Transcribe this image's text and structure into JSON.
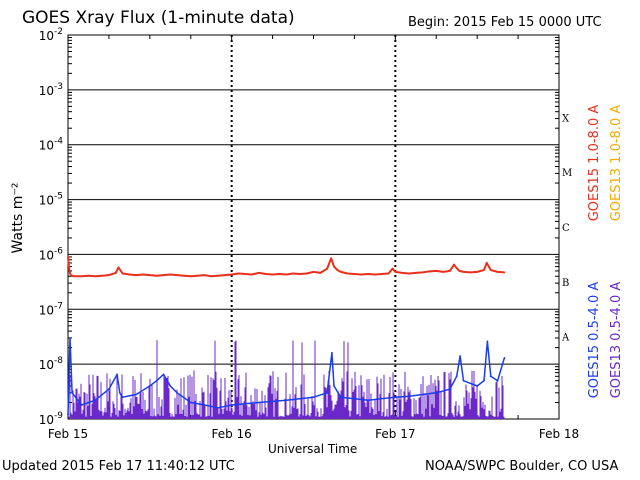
{
  "header": {
    "title": "GOES Xray Flux (1-minute data)",
    "begin": "Begin:  2015 Feb 15 0000 UTC"
  },
  "footer": {
    "updated": "Updated 2015 Feb 17 11:40:12 UTC",
    "credit": "NOAA/SWPC Boulder, CO USA"
  },
  "colors": {
    "goes15_long": "#e8301c",
    "goes13_long": "#f2a900",
    "goes15_short": "#1a3cf0",
    "goes13_short": "#6a28c8"
  },
  "chart_data": {
    "type": "line",
    "ylabel": "Watts m⁻²",
    "xlabel": "Universal Time",
    "yscale": "log",
    "ylim": [
      1e-09,
      0.01
    ],
    "ytick_labels": [
      {
        "base": "10",
        "exp": "-2"
      },
      {
        "base": "10",
        "exp": "-3"
      },
      {
        "base": "10",
        "exp": "-4"
      },
      {
        "base": "10",
        "exp": "-5"
      },
      {
        "base": "10",
        "exp": "-6"
      },
      {
        "base": "10",
        "exp": "-7"
      },
      {
        "base": "10",
        "exp": "-8"
      },
      {
        "base": "10",
        "exp": "-9"
      }
    ],
    "xlim": [
      0,
      72
    ],
    "x_unit": "hours since 2015 Feb 15 0000 UTC",
    "xtick_labels": [
      "Feb 15",
      "Feb 16",
      "Feb 17",
      "Feb 18"
    ],
    "flare_classes": [
      "X",
      "M",
      "C",
      "B",
      "A"
    ],
    "grid": true,
    "legend": [
      {
        "name": "GOES15 1.0-8.0 A",
        "color": "#e8301c"
      },
      {
        "name": "GOES13 1.0-8.0 A",
        "color": "#f2a900"
      },
      {
        "name": "GOES15 0.5-4.0 A",
        "color": "#1a3cf0"
      },
      {
        "name": "GOES13 0.5-4.0 A",
        "color": "#6a28c8"
      }
    ],
    "series": [
      {
        "name": "GOES15 1.0-8.0 A",
        "color": "#e8301c",
        "x": [
          0,
          0.2,
          0.4,
          0.8,
          2,
          3,
          4,
          5,
          6,
          7,
          7.4,
          8,
          9,
          10,
          11,
          12,
          13,
          14,
          15,
          16,
          17,
          18,
          19,
          20,
          21,
          22,
          23,
          24,
          25,
          26,
          27,
          28,
          29,
          30,
          31,
          32,
          33,
          34,
          35,
          36,
          37,
          38,
          38.6,
          39,
          39.5,
          40,
          41,
          42,
          43,
          44,
          45,
          46,
          47,
          47.6,
          48,
          49,
          50,
          51,
          52,
          53,
          54,
          55,
          56,
          56.6,
          57,
          57.4,
          58,
          59,
          60,
          61,
          61.4,
          62,
          63,
          64
        ],
        "y": [
          9e-07,
          5e-07,
          4.2e-07,
          4e-07,
          4e-07,
          4.1e-07,
          4e-07,
          4.1e-07,
          4.2e-07,
          4.6e-07,
          5.8e-07,
          4.5e-07,
          4.3e-07,
          4.2e-07,
          4.3e-07,
          4.2e-07,
          4.1e-07,
          4.2e-07,
          4.3e-07,
          4.2e-07,
          4.1e-07,
          4e-07,
          4.1e-07,
          4.2e-07,
          4e-07,
          4.1e-07,
          4.2e-07,
          4.3e-07,
          4.5e-07,
          4.4e-07,
          4.3e-07,
          4.6e-07,
          4.4e-07,
          4.3e-07,
          4.4e-07,
          4.3e-07,
          4.5e-07,
          4.4e-07,
          4.5e-07,
          4.8e-07,
          4.6e-07,
          5.5e-07,
          8.5e-07,
          6e-07,
          5.2e-07,
          4.8e-07,
          4.5e-07,
          4.4e-07,
          4.3e-07,
          4.4e-07,
          4.3e-07,
          4.4e-07,
          4.5e-07,
          5.5e-07,
          4.8e-07,
          4.6e-07,
          4.5e-07,
          4.6e-07,
          4.7e-07,
          4.9e-07,
          5e-07,
          4.8e-07,
          5e-07,
          6.5e-07,
          5.6e-07,
          5e-07,
          4.8e-07,
          4.7e-07,
          4.8e-07,
          5.2e-07,
          7e-07,
          5.2e-07,
          4.8e-07,
          4.7e-07
        ]
      },
      {
        "name": "GOES15 0.5-4.0 A",
        "color": "#1a3cf0",
        "x": [
          0,
          0.3,
          0.6,
          2,
          4,
          6,
          7.2,
          7.6,
          8,
          10,
          12,
          13,
          14,
          15,
          16,
          18,
          20,
          22,
          24,
          28,
          32,
          36,
          38,
          38.7,
          39,
          40,
          44,
          48,
          50,
          52,
          54,
          56,
          57,
          57.5,
          58,
          60,
          61,
          61.5,
          62,
          63,
          64
        ],
        "y": [
          1.2e-09,
          3e-08,
          3e-09,
          1.8e-09,
          2.2e-09,
          3.5e-09,
          6.5e-09,
          3e-09,
          2.5e-09,
          2.8e-09,
          4e-09,
          5e-09,
          6.5e-09,
          4e-09,
          3e-09,
          2e-09,
          1.8e-09,
          1.6e-09,
          1.8e-09,
          2e-09,
          2.2e-09,
          2.5e-09,
          3e-09,
          1.6e-08,
          4e-09,
          2.5e-09,
          2.2e-09,
          2.5e-09,
          2.6e-09,
          2.8e-09,
          3e-09,
          3.5e-09,
          6e-09,
          1.4e-08,
          5e-09,
          4e-09,
          5e-09,
          2.6e-08,
          6e-09,
          5e-09,
          1.3e-08
        ]
      }
    ]
  }
}
